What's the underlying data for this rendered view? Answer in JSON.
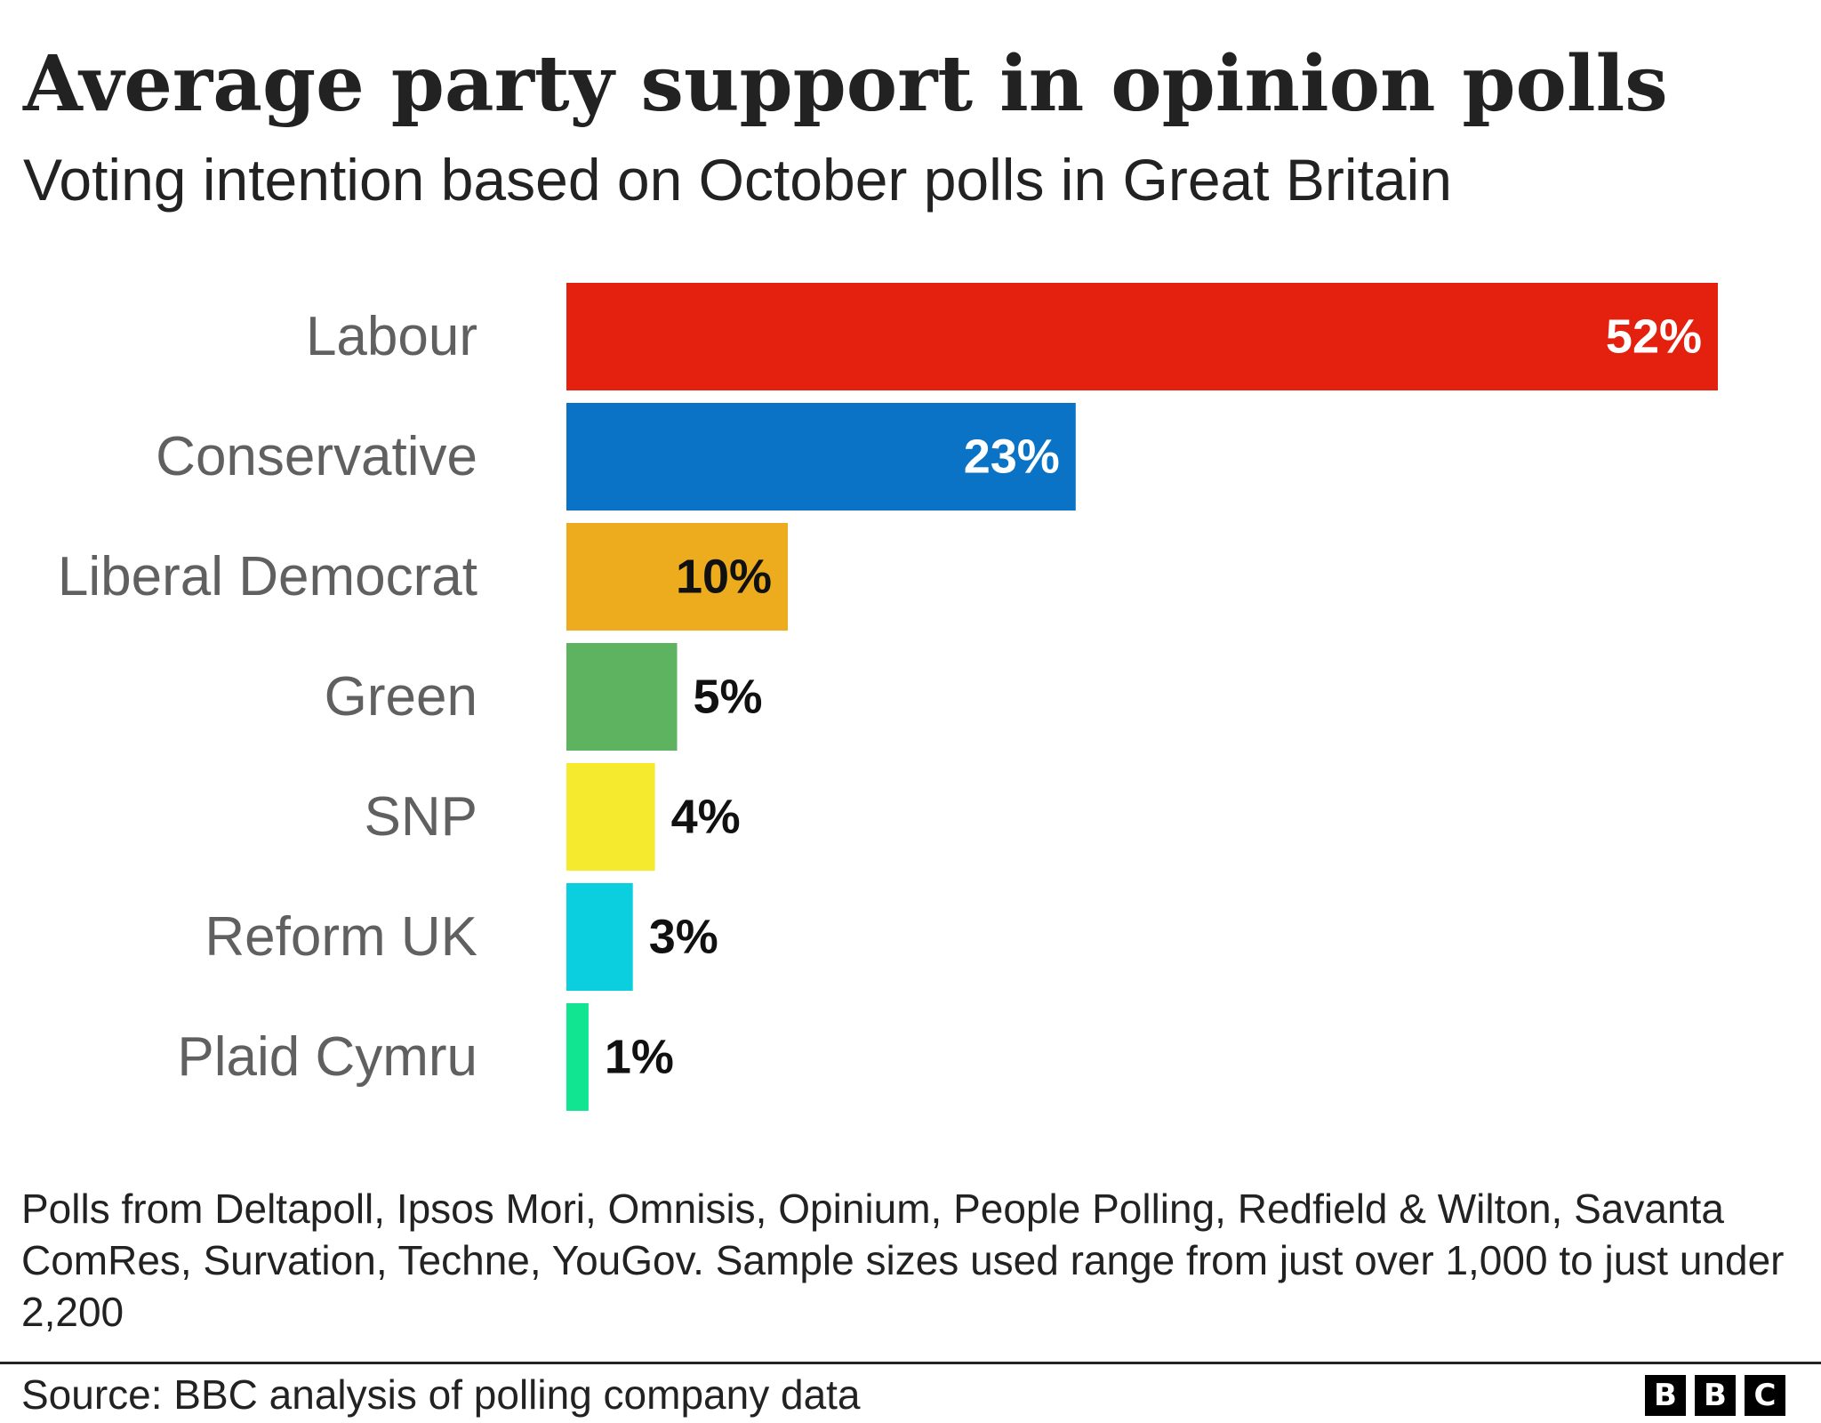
{
  "header": {
    "title": "Average party support in opinion polls",
    "subtitle": "Voting intention based on October polls in Great Britain"
  },
  "chart_data": {
    "type": "bar",
    "orientation": "horizontal",
    "title": "Average party support in opinion polls",
    "subtitle": "Voting intention based on October polls in Great Britain",
    "xlabel": "",
    "ylabel": "",
    "xlim": [
      0,
      52
    ],
    "grid": false,
    "categories": [
      "Labour",
      "Conservative",
      "Liberal Democrat",
      "Green",
      "SNP",
      "Reform UK",
      "Plaid Cymru"
    ],
    "values": [
      52,
      23,
      10,
      5,
      4,
      3,
      1
    ],
    "value_labels": [
      "52%",
      "23%",
      "10%",
      "5%",
      "4%",
      "3%",
      "1%"
    ],
    "colors": [
      "#e4200f",
      "#0a73c6",
      "#edac1e",
      "#5eb360",
      "#f5ea2e",
      "#0bcfdf",
      "#12e592"
    ],
    "label_colors": [
      "#ffffff",
      "#ffffff",
      "#111111",
      "#111111",
      "#111111",
      "#111111",
      "#111111"
    ]
  },
  "footer": {
    "note": "Polls from Deltapoll, Ipsos Mori, Omnisis, Opinium, People Polling, Redfield & Wilton, Savanta ComRes, Survation, Techne, YouGov. Sample sizes used range from just over 1,000 to just under 2,200",
    "source": "Source: BBC analysis of polling company data",
    "logo_letters": [
      "B",
      "B",
      "C"
    ]
  }
}
